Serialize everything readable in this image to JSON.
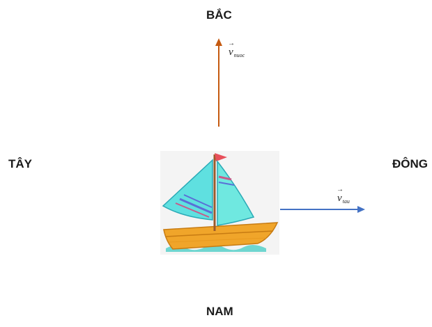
{
  "directions": {
    "north": "BẮC",
    "south": "NAM",
    "west": "TÂY",
    "east": "ĐÔNG"
  },
  "vectors": {
    "water": {
      "symbol": "v",
      "subscript": "nuoc",
      "color": "#c55a11"
    },
    "boat": {
      "symbol": "v",
      "subscript": "tau",
      "color": "#4472c4"
    }
  },
  "boat_icon": "sailboat-icon"
}
